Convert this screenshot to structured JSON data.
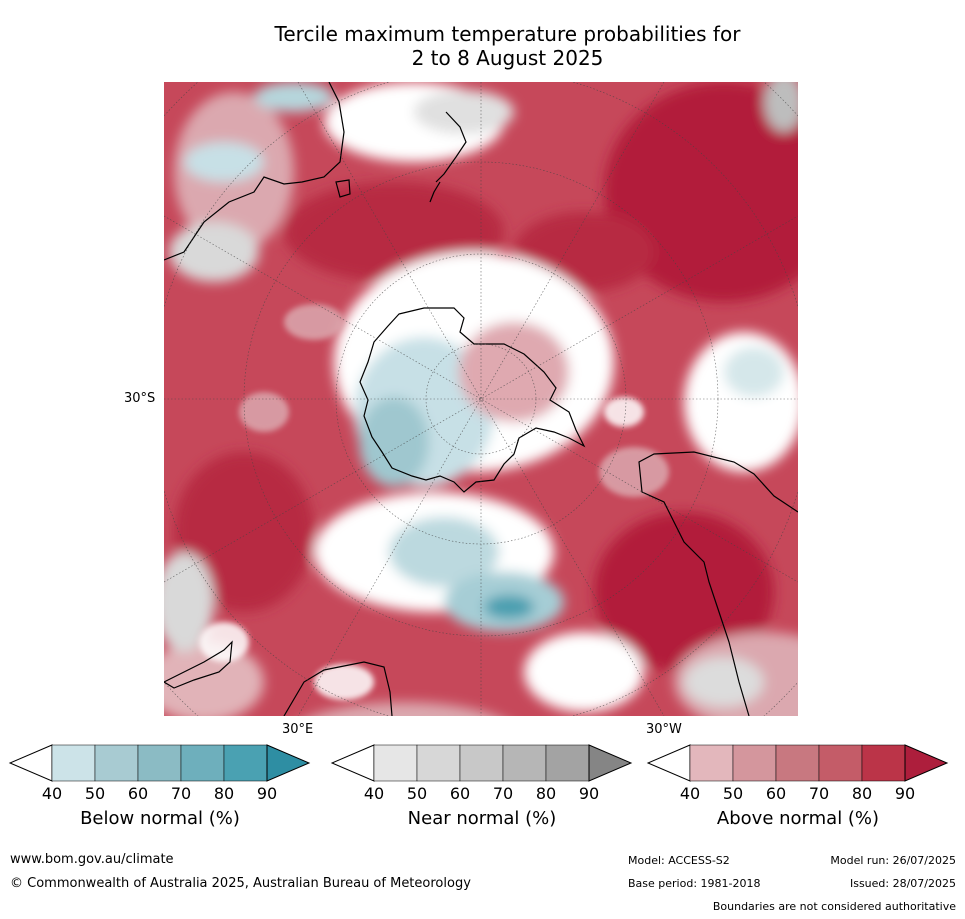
{
  "title_line1": "Tercile maximum temperature probabilities for",
  "title_line2": "2 to 8 August 2025",
  "map": {
    "lat_label": "30°S",
    "lon_label_east": "30°E",
    "lon_label_west": "30°W"
  },
  "colorbars": [
    {
      "title": "Below normal (%)",
      "ticks": [
        "40",
        "50",
        "60",
        "70",
        "80",
        "90"
      ],
      "colors": [
        "#cce3e8",
        "#a8cbd2",
        "#8bbbc4",
        "#6eafbc",
        "#4aa1b2",
        "#2e8ea3"
      ]
    },
    {
      "title": "Near normal (%)",
      "ticks": [
        "40",
        "50",
        "60",
        "70",
        "80",
        "90"
      ],
      "colors": [
        "#e6e6e6",
        "#d7d7d7",
        "#c8c8c8",
        "#b6b6b6",
        "#a3a3a3",
        "#858585"
      ]
    },
    {
      "title": "Above normal (%)",
      "ticks": [
        "40",
        "50",
        "60",
        "70",
        "80",
        "90"
      ],
      "colors": [
        "#e3b7bc",
        "#d4969d",
        "#c87880",
        "#c45c68",
        "#bb3448",
        "#ad1e3c"
      ]
    }
  ],
  "footer": {
    "website": "www.bom.gov.au/climate",
    "copyright": "© Commonwealth of Australia 2025, Australian Bureau of Meteorology",
    "model": "Model: ACCESS-S2",
    "base_period": "Base period: 1981-2018",
    "model_run": "Model run: 26/07/2025",
    "issued": "Issued: 28/07/2025",
    "disclaimer": "Boundaries are not considered authoritative"
  }
}
